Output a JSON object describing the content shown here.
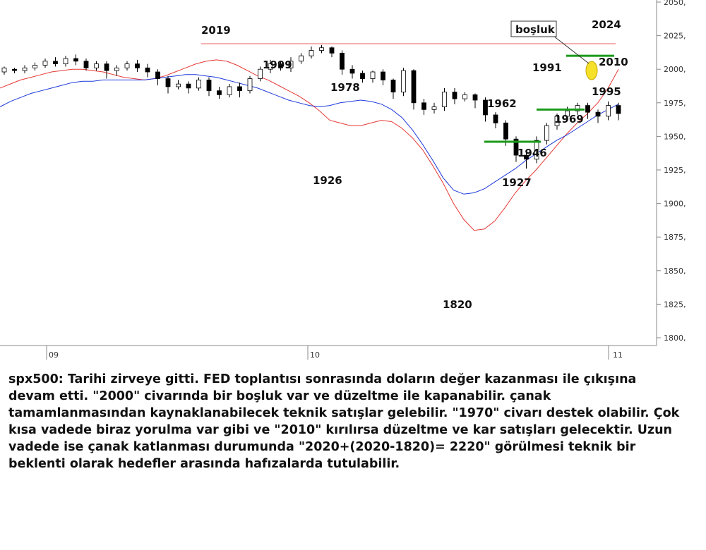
{
  "chart_data": {
    "type": "candlestick",
    "ylim": [
      1800,
      2050
    ],
    "y_ticks": [
      "2050,",
      "2025,",
      "2000,",
      "1975,",
      "1950,",
      "1925,",
      "1900,",
      "1875,",
      "1850,",
      "1825,",
      "1800,"
    ],
    "x_ticks": [
      "09",
      "10",
      "11"
    ],
    "series": [
      {
        "name": "",
        "color": "#e53935",
        "values": [
          1986,
          1989,
          1992,
          1994,
          1996,
          1998,
          1999,
          2000,
          2000,
          1999,
          1998,
          1996,
          1994,
          1993,
          1992,
          1993,
          1995,
          1998,
          2001,
          2004,
          2006,
          2007,
          2006,
          2003,
          1999,
          1995,
          1992,
          1988,
          1984,
          1980,
          1975,
          1969,
          1962,
          1960,
          1958,
          1958,
          1960,
          1962,
          1961,
          1956,
          1949,
          1940,
          1928,
          1915,
          1900,
          1888,
          1880,
          1881,
          1887,
          1897,
          1908,
          1917,
          1925,
          1934,
          1943,
          1952,
          1960,
          1967,
          1975,
          1986,
          2000
        ]
      },
      {
        "name": "",
        "color": "#1e3adb",
        "values": [
          1972,
          1976,
          1979,
          1982,
          1984,
          1986,
          1988,
          1990,
          1991,
          1991,
          1992,
          1992,
          1992,
          1992,
          1992,
          1993,
          1994,
          1995,
          1996,
          1996,
          1995,
          1994,
          1992,
          1990,
          1988,
          1986,
          1983,
          1980,
          1977,
          1975,
          1973,
          1972,
          1973,
          1975,
          1976,
          1977,
          1976,
          1974,
          1970,
          1964,
          1955,
          1944,
          1932,
          1919,
          1910,
          1907,
          1908,
          1911,
          1916,
          1921,
          1926,
          1932,
          1937,
          1942,
          1947,
          1951,
          1956,
          1961,
          1966,
          1970,
          1974
        ]
      }
    ],
    "candles": [
      [
        1998,
        2001,
        1996,
        2002
      ],
      [
        2000,
        1999,
        1997,
        2001
      ],
      [
        1999,
        2001,
        1997,
        2003
      ],
      [
        2001,
        2003,
        1999,
        2005
      ],
      [
        2003,
        2006,
        2001,
        2008
      ],
      [
        2006,
        2004,
        2002,
        2009
      ],
      [
        2004,
        2008,
        2002,
        2010
      ],
      [
        2008,
        2006,
        2003,
        2011
      ],
      [
        2006,
        2001,
        1999,
        2008
      ],
      [
        2001,
        2004,
        1999,
        2006
      ],
      [
        2004,
        1999,
        1993,
        2006
      ],
      [
        1999,
        2001,
        1995,
        2003
      ],
      [
        2001,
        2004,
        1999,
        2006
      ],
      [
        2004,
        2001,
        1998,
        2007
      ],
      [
        2001,
        1998,
        1994,
        2004
      ],
      [
        1998,
        1993,
        1988,
        2000
      ],
      [
        1993,
        1987,
        1982,
        1995
      ],
      [
        1987,
        1989,
        1985,
        1992
      ],
      [
        1989,
        1986,
        1982,
        1991
      ],
      [
        1986,
        1992,
        1984,
        1994
      ],
      [
        1992,
        1984,
        1980,
        1994
      ],
      [
        1984,
        1981,
        1978,
        1987
      ],
      [
        1981,
        1987,
        1979,
        1989
      ],
      [
        1987,
        1984,
        1979,
        1990
      ],
      [
        1984,
        1993,
        1982,
        1995
      ],
      [
        1993,
        2000,
        1991,
        2002
      ],
      [
        2000,
        2004,
        1997,
        2007
      ],
      [
        2004,
        2001,
        1999,
        2006
      ],
      [
        2001,
        2006,
        1998,
        2009
      ],
      [
        2006,
        2010,
        2004,
        2012
      ],
      [
        2010,
        2014,
        2008,
        2017
      ],
      [
        2014,
        2016,
        2012,
        2018
      ],
      [
        2016,
        2012,
        2009,
        2017
      ],
      [
        2012,
        2000,
        1996,
        2014
      ],
      [
        2000,
        1997,
        1993,
        2003
      ],
      [
        1997,
        1993,
        1990,
        1999
      ],
      [
        1993,
        1998,
        1990,
        1999
      ],
      [
        1998,
        1992,
        1988,
        2000
      ],
      [
        1992,
        1983,
        1978,
        1993
      ],
      [
        1983,
        1999,
        1980,
        2001
      ],
      [
        1999,
        1975,
        1970,
        2000
      ],
      [
        1975,
        1970,
        1966,
        1978
      ],
      [
        1970,
        1972,
        1967,
        1975
      ],
      [
        1972,
        1983,
        1969,
        1986
      ],
      [
        1983,
        1978,
        1974,
        1986
      ],
      [
        1978,
        1981,
        1976,
        1983
      ],
      [
        1981,
        1977,
        1971,
        1982
      ],
      [
        1977,
        1966,
        1961,
        1979
      ],
      [
        1966,
        1960,
        1956,
        1968
      ],
      [
        1960,
        1948,
        1943,
        1962
      ],
      [
        1948,
        1936,
        1931,
        1950
      ],
      [
        1936,
        1933,
        1926,
        1938
      ],
      [
        1933,
        1947,
        1930,
        1950
      ],
      [
        1947,
        1958,
        1944,
        1960
      ],
      [
        1958,
        1965,
        1955,
        1967
      ],
      [
        1965,
        1969,
        1963,
        1972
      ],
      [
        1969,
        1973,
        1966,
        1975
      ],
      [
        1973,
        1968,
        1963,
        1975
      ],
      [
        1968,
        1965,
        1960,
        1970
      ],
      [
        1965,
        1973,
        1962,
        1976
      ],
      [
        1973,
        1967,
        1962,
        1975
      ]
    ],
    "annotations": {
      "highs": [
        "2019",
        "1999",
        "1978",
        "1962",
        "1991",
        "2024"
      ],
      "lows": [
        "1926",
        "1820",
        "1927",
        "1946",
        "1969",
        "1995",
        "2010"
      ],
      "gap_label": "boşluk",
      "resistance_level": 2019,
      "support_levels": [
        1946,
        1970,
        2010
      ]
    }
  },
  "commentary": {
    "paragraph": "spx500: Tarihi zirveye gitti. FED toplantısı sonrasında doların değer kazanması ile çıkışına devam etti. \"2000\" civarında bir boşluk var ve düzeltme ile kapanabilir. çanak tamamlanmasından kaynaklanabilecek teknik satışlar gelebilir. \"1970\" civarı destek olabilir. Çok kısa vadede biraz yorulma var gibi ve \"2010\" kırılırsa düzeltme ve kar satışları gelecektir. Uzun vadede ise çanak katlanması durumunda \"2020+(2020-1820)= 2220\" görülmesi teknik bir beklenti olarak hedefler arasında hafızalarda tutulabilir."
  },
  "colors": {
    "candle_up": "#ffffff",
    "candle_down": "#000000",
    "resistance": "#f08080",
    "support": "#1a9a1a",
    "highlight": "#f5e02a"
  }
}
